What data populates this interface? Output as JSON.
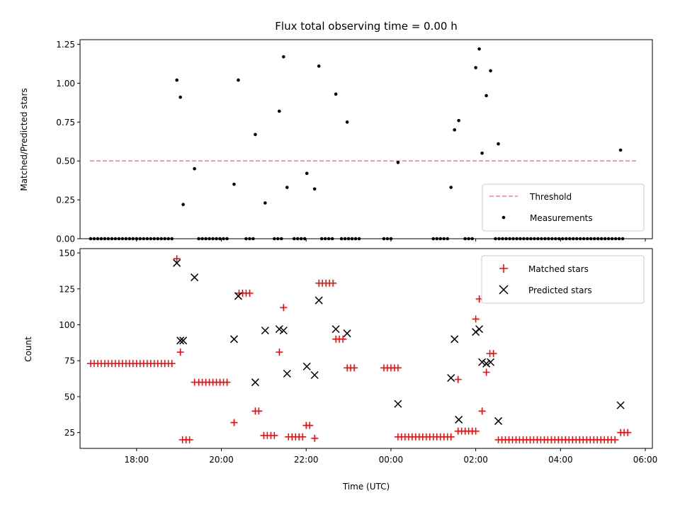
{
  "chart_data": [
    {
      "type": "scatter",
      "title": "Flux total observing time = 0.00 h",
      "xlabel": "",
      "ylabel": "Matched/Predicted stars",
      "xlim": [
        "16:40",
        "06:10"
      ],
      "ylim": [
        0,
        1.28
      ],
      "yticks": [
        "0.00",
        "0.25",
        "0.50",
        "0.75",
        "1.00",
        "1.25"
      ],
      "legend": {
        "position": "lower-right",
        "entries": [
          "Threshold",
          "Measurements"
        ]
      },
      "threshold": {
        "name": "Threshold",
        "y": 0.5,
        "x_range": [
          "16:54",
          "05:48"
        ],
        "color": "#ff7f7f"
      },
      "series": [
        {
          "name": "Measurements",
          "color": "#000000",
          "points": [
            [
              "18:57",
              1.02
            ],
            [
              "19:02",
              0.91
            ],
            [
              "19:06",
              0.22
            ],
            [
              "19:22",
              0.45
            ],
            [
              "20:18",
              0.35
            ],
            [
              "20:24",
              1.02
            ],
            [
              "20:48",
              0.67
            ],
            [
              "21:02",
              0.23
            ],
            [
              "21:22",
              0.82
            ],
            [
              "21:28",
              1.17
            ],
            [
              "21:33",
              0.33
            ],
            [
              "22:01",
              0.42
            ],
            [
              "22:12",
              0.32
            ],
            [
              "22:18",
              1.11
            ],
            [
              "22:42",
              0.93
            ],
            [
              "22:58",
              0.75
            ],
            [
              "00:10",
              0.49
            ],
            [
              "01:25",
              0.33
            ],
            [
              "01:30",
              0.7
            ],
            [
              "01:36",
              0.76
            ],
            [
              "02:00",
              1.1
            ],
            [
              "02:05",
              1.22
            ],
            [
              "02:09",
              0.55
            ],
            [
              "02:15",
              0.92
            ],
            [
              "02:21",
              1.08
            ],
            [
              "02:32",
              0.61
            ],
            [
              "05:25",
              0.57
            ]
          ],
          "zero_segments": [
            [
              "16:55",
              "18:50"
            ],
            [
              "19:28",
              "20:10"
            ],
            [
              "20:35",
              "20:45"
            ],
            [
              "21:15",
              "21:25"
            ],
            [
              "21:43",
              "22:00"
            ],
            [
              "22:22",
              "22:40"
            ],
            [
              "22:50",
              "23:15"
            ],
            [
              "23:50",
              "00:00"
            ],
            [
              "01:00",
              "01:20"
            ],
            [
              "01:45",
              "01:55"
            ],
            [
              "02:28",
              "05:30"
            ]
          ]
        }
      ]
    },
    {
      "type": "scatter",
      "title": "",
      "xlabel": "Time (UTC)",
      "ylabel": "Count",
      "xlim": [
        "16:40",
        "06:10"
      ],
      "ylim": [
        14,
        153
      ],
      "xticks": [
        "18:00",
        "20:00",
        "22:00",
        "00:00",
        "02:00",
        "04:00",
        "06:00"
      ],
      "yticks": [
        "25",
        "50",
        "75",
        "100",
        "125",
        "150"
      ],
      "legend": {
        "position": "top-right",
        "entries": [
          "Matched stars",
          "Predicted stars"
        ]
      },
      "series": [
        {
          "name": "Matched stars",
          "marker": "+",
          "color": "#ff0000",
          "points": [
            [
              "18:57",
              146
            ],
            [
              "19:02",
              81
            ],
            [
              "19:22",
              60
            ],
            [
              "20:18",
              32
            ],
            [
              "21:22",
              81
            ],
            [
              "21:28",
              112
            ],
            [
              "22:12",
              21
            ],
            [
              "01:35",
              62
            ],
            [
              "02:00",
              104
            ],
            [
              "02:05",
              118
            ],
            [
              "02:09",
              40
            ],
            [
              "02:15",
              67
            ]
          ],
          "runs": [
            {
              "from": "16:55",
              "to": "18:50",
              "value": 73
            },
            {
              "from": "19:05",
              "to": "19:15",
              "value": 20
            },
            {
              "from": "19:28",
              "to": "20:10",
              "value": 60
            },
            {
              "from": "20:25",
              "to": "20:40",
              "value": 122
            },
            {
              "from": "20:48",
              "to": "20:55",
              "value": 40
            },
            {
              "from": "21:00",
              "to": "21:15",
              "value": 23
            },
            {
              "from": "21:35",
              "to": "21:58",
              "value": 22
            },
            {
              "from": "22:00",
              "to": "22:08",
              "value": 30
            },
            {
              "from": "22:18",
              "to": "22:38",
              "value": 129
            },
            {
              "from": "22:42",
              "to": "22:55",
              "value": 90
            },
            {
              "from": "22:58",
              "to": "23:08",
              "value": 70
            },
            {
              "from": "23:50",
              "to": "00:10",
              "value": 70
            },
            {
              "from": "00:10",
              "to": "01:28",
              "value": 22
            },
            {
              "from": "01:35",
              "to": "02:00",
              "value": 26
            },
            {
              "from": "02:20",
              "to": "02:26",
              "value": 80
            },
            {
              "from": "02:32",
              "to": "05:20",
              "value": 20
            },
            {
              "from": "05:25",
              "to": "05:35",
              "value": 25
            }
          ]
        },
        {
          "name": "Predicted stars",
          "marker": "x",
          "color": "#000000",
          "points": [
            [
              "18:57",
              143
            ],
            [
              "19:02",
              89
            ],
            [
              "19:06",
              89
            ],
            [
              "19:22",
              133
            ],
            [
              "20:18",
              90
            ],
            [
              "20:24",
              120
            ],
            [
              "20:48",
              60
            ],
            [
              "21:02",
              96
            ],
            [
              "21:22",
              97
            ],
            [
              "21:28",
              96
            ],
            [
              "21:33",
              66
            ],
            [
              "22:01",
              71
            ],
            [
              "22:12",
              65
            ],
            [
              "22:18",
              117
            ],
            [
              "22:42",
              97
            ],
            [
              "22:58",
              94
            ],
            [
              "00:10",
              45
            ],
            [
              "01:25",
              63
            ],
            [
              "01:30",
              90
            ],
            [
              "01:36",
              34
            ],
            [
              "02:00",
              95
            ],
            [
              "02:05",
              97
            ],
            [
              "02:09",
              74
            ],
            [
              "02:15",
              73
            ],
            [
              "02:21",
              74
            ],
            [
              "02:32",
              33
            ],
            [
              "05:25",
              44
            ]
          ]
        }
      ]
    }
  ]
}
